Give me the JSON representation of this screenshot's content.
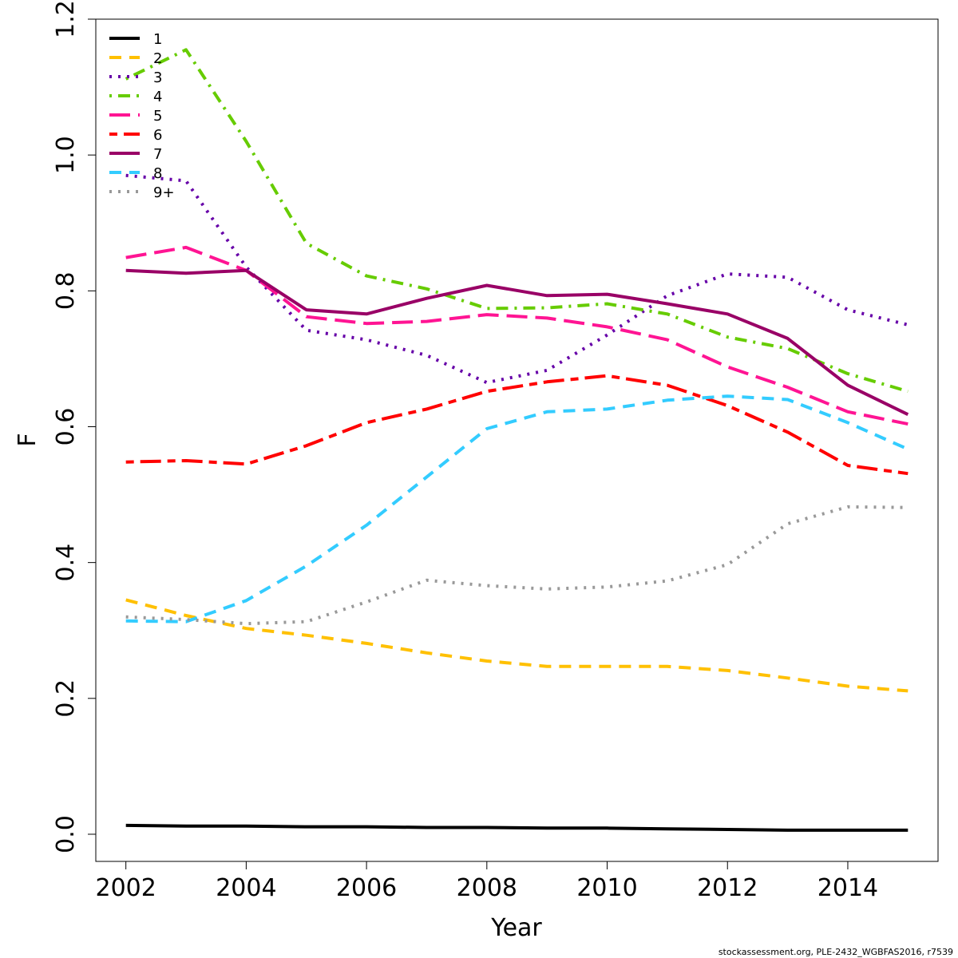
{
  "chart_data": {
    "type": "line",
    "title": "",
    "xlabel": "Year",
    "ylabel": "F",
    "xlim": [
      2001.5,
      2015.5
    ],
    "ylim": [
      -0.04,
      1.2
    ],
    "xticks": [
      2002,
      2004,
      2006,
      2008,
      2010,
      2012,
      2014
    ],
    "yticks": [
      0.0,
      0.2,
      0.4,
      0.6,
      0.8,
      1.0,
      1.2
    ],
    "ytick_labels": [
      "0.0",
      "0.2",
      "0.4",
      "0.6",
      "0.8",
      "1.0",
      "1.2"
    ],
    "grid": false,
    "legend_position": "top-left",
    "x": [
      2002,
      2003,
      2004,
      2005,
      2006,
      2007,
      2008,
      2009,
      2010,
      2011,
      2012,
      2013,
      2014,
      2015
    ],
    "series": [
      {
        "name": "1",
        "color": "#000000",
        "dash": "solid",
        "values": [
          0.013,
          0.012,
          0.012,
          0.011,
          0.011,
          0.01,
          0.01,
          0.009,
          0.009,
          0.008,
          0.007,
          0.006,
          0.006,
          0.006
        ]
      },
      {
        "name": "2",
        "color": "#FFC000",
        "dash": "dashed",
        "values": [
          0.345,
          0.322,
          0.303,
          0.293,
          0.281,
          0.267,
          0.255,
          0.247,
          0.247,
          0.247,
          0.241,
          0.23,
          0.218,
          0.211
        ]
      },
      {
        "name": "3",
        "color": "#6600A8",
        "dash": "dotted",
        "values": [
          0.97,
          0.962,
          0.835,
          0.742,
          0.728,
          0.705,
          0.665,
          0.683,
          0.735,
          0.793,
          0.825,
          0.82,
          0.772,
          0.75
        ]
      },
      {
        "name": "4",
        "color": "#66CC00",
        "dash": "dotdash",
        "values": [
          1.112,
          1.155,
          1.02,
          0.87,
          0.822,
          0.803,
          0.774,
          0.775,
          0.781,
          0.766,
          0.732,
          0.715,
          0.678,
          0.652
        ]
      },
      {
        "name": "5",
        "color": "#FF1493",
        "dash": "longdash",
        "values": [
          0.849,
          0.864,
          0.83,
          0.762,
          0.752,
          0.755,
          0.765,
          0.76,
          0.747,
          0.728,
          0.688,
          0.658,
          0.622,
          0.604
        ]
      },
      {
        "name": "6",
        "color": "#FF0000",
        "dash": "twodash",
        "values": [
          0.548,
          0.55,
          0.545,
          0.572,
          0.606,
          0.626,
          0.652,
          0.666,
          0.675,
          0.661,
          0.631,
          0.592,
          0.543,
          0.531
        ]
      },
      {
        "name": "7",
        "color": "#990066",
        "dash": "solid",
        "values": [
          0.83,
          0.826,
          0.83,
          0.772,
          0.766,
          0.789,
          0.808,
          0.793,
          0.795,
          0.781,
          0.766,
          0.73,
          0.661,
          0.618
        ]
      },
      {
        "name": "8",
        "color": "#33CCFF",
        "dash": "dashed",
        "values": [
          0.314,
          0.313,
          0.344,
          0.395,
          0.455,
          0.526,
          0.597,
          0.622,
          0.626,
          0.639,
          0.645,
          0.64,
          0.606,
          0.567
        ]
      },
      {
        "name": "9+",
        "color": "#999999",
        "dash": "dotted",
        "values": [
          0.32,
          0.316,
          0.31,
          0.313,
          0.342,
          0.374,
          0.366,
          0.361,
          0.364,
          0.373,
          0.397,
          0.457,
          0.482,
          0.481
        ]
      }
    ]
  },
  "footer": {
    "text": "stockassessment.org, PLE-2432_WGBFAS2016, r7539"
  }
}
